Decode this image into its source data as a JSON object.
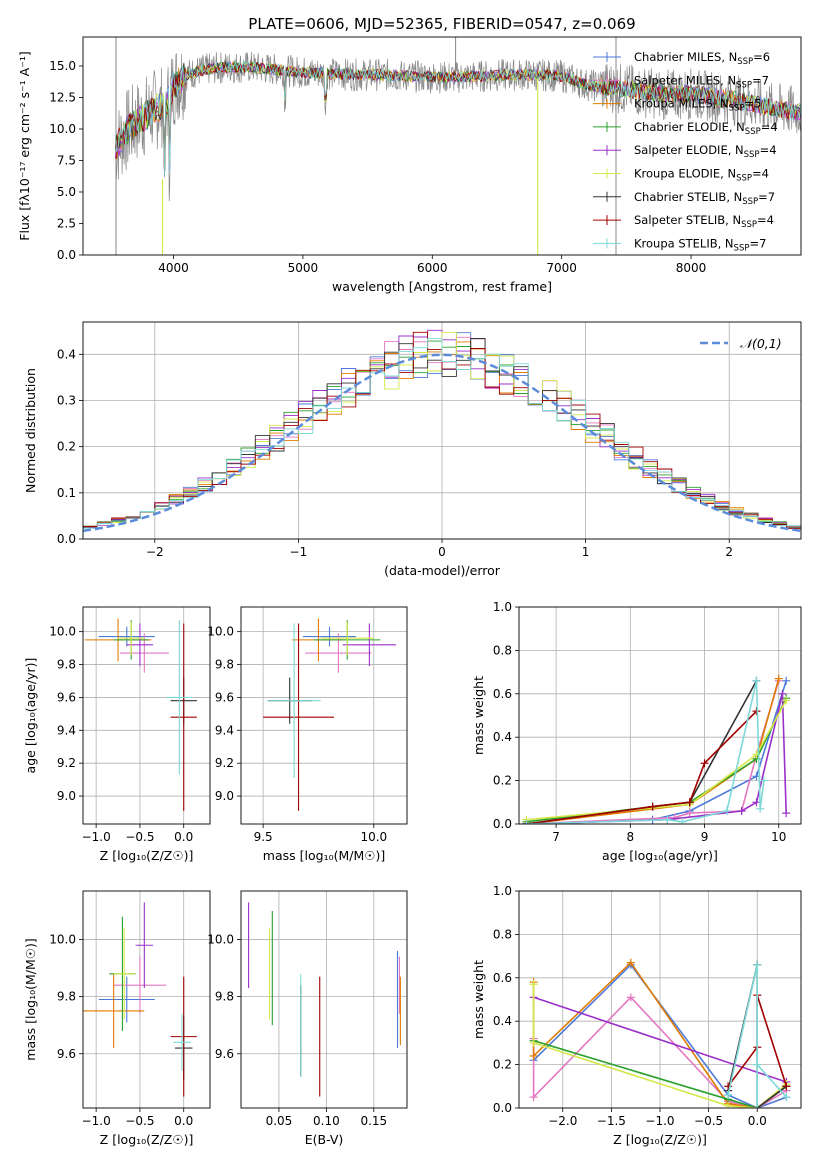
{
  "figure": {
    "title": "PLATE=0606, MJD=52365, FIBERID=0547, z=0.069"
  },
  "styles": {
    "colors": [
      "#4e79d9",
      "#e377c2",
      "#e07b00",
      "#2ca02c",
      "#9b30c8",
      "#d4e84a",
      "#333333",
      "#a00000",
      "#7fd8d8"
    ],
    "grid_color": "#b0b0b0",
    "gauss_color": "#5b8bd9"
  },
  "chart_data": [
    {
      "id": "spectrum",
      "type": "line",
      "title": "PLATE=0606, MJD=52365, FIBERID=0547, z=0.069",
      "xlabel": "wavelength [Angstrom, rest frame]",
      "ylabel": "Flux [fλ10⁻¹⁷ erg cm⁻² s⁻¹ A⁻¹]",
      "xlim": [
        3300,
        8850
      ],
      "ylim": [
        0,
        17.3
      ],
      "xticks": [
        4000,
        5000,
        6000,
        7000,
        8000
      ],
      "yticks": [
        0.0,
        2.5,
        5.0,
        7.5,
        10.0,
        12.5,
        15.0
      ],
      "legend_position": "upper-right",
      "continuum": {
        "x": [
          3550,
          3650,
          3750,
          3850,
          3950,
          4000,
          4100,
          4200,
          4300,
          4400,
          4600,
          4800,
          5000,
          5200,
          5400,
          5600,
          5800,
          6000,
          6200,
          6400,
          6600,
          6800,
          7000,
          7200,
          7400,
          7600,
          7800,
          8000,
          8200,
          8400,
          8600,
          8800
        ],
        "y": [
          8.5,
          10.0,
          10.8,
          11.5,
          12.0,
          13.5,
          14.3,
          14.6,
          14.8,
          14.9,
          14.9,
          14.7,
          14.5,
          14.4,
          14.3,
          14.3,
          14.2,
          14.1,
          14.1,
          14.2,
          14.3,
          14.3,
          14.2,
          13.5,
          13.3,
          13.0,
          12.7,
          12.8,
          12.5,
          12.2,
          11.7,
          11.4
        ]
      },
      "legend": [
        "Chabrier MILES, N_SSP=6",
        "Salpeter MILES, N_SSP=7",
        "Kroupa MILES, N_SSP=5",
        "Chabrier ELODIE, N_SSP=4",
        "Salpeter ELODIE, N_SSP=4",
        "Kroupa ELODIE, N_SSP=4",
        "Chabrier STELIB, N_SSP=7",
        "Salpeter STELIB, N_SSP=4",
        "Kroupa STELIB, N_SSP=7"
      ]
    },
    {
      "id": "residuals",
      "type": "area",
      "xlabel": "(data-model)/error",
      "ylabel": "Normed distribution",
      "xlim": [
        -2.5,
        2.5
      ],
      "ylim": [
        0,
        0.47
      ],
      "xticks": [
        -2,
        -1,
        0,
        1,
        2
      ],
      "yticks": [
        0.0,
        0.1,
        0.2,
        0.3,
        0.4
      ],
      "gauss_label": "𝒩(0,1)",
      "legend_position": "upper-right"
    },
    {
      "id": "age_vs_Z",
      "type": "scatter",
      "xlabel": "Z [log₁₀(Z/Z☉)]",
      "ylabel": "age  [log₁₀(age/yr)]",
      "xlim": [
        -1.15,
        0.3
      ],
      "ylim": [
        8.83,
        10.15
      ],
      "xticks": [
        -1.0,
        -0.5,
        0.0
      ],
      "yticks": [
        9.0,
        9.2,
        9.4,
        9.6,
        9.8,
        10.0
      ],
      "points": [
        {
          "x": -0.65,
          "y": 9.97,
          "xerr": 0.32,
          "yerr": 0.06
        },
        {
          "x": -0.45,
          "y": 9.87,
          "xerr": 0.28,
          "yerr": 0.12
        },
        {
          "x": -0.75,
          "y": 9.95,
          "xerr": 0.38,
          "yerr": 0.13
        },
        {
          "x": -0.6,
          "y": 9.95,
          "xerr": 0.2,
          "yerr": 0.12
        },
        {
          "x": -0.5,
          "y": 9.92,
          "xerr": 0.15,
          "yerr": 0.13
        },
        {
          "x": -0.6,
          "y": 9.96,
          "xerr": 0.15,
          "yerr": 0.1
        },
        {
          "x": 0.0,
          "y": 9.58,
          "xerr": 0.15,
          "yerr": 0.14
        },
        {
          "x": 0.0,
          "y": 9.48,
          "xerr": 0.15,
          "yerr": 0.57
        },
        {
          "x": -0.05,
          "y": 9.6,
          "xerr": 0.15,
          "yerr": 0.47
        }
      ]
    },
    {
      "id": "age_vs_mass",
      "type": "scatter",
      "xlabel": "mass [log₁₀(M/M☉)]",
      "ylabel": "",
      "xlim": [
        9.4,
        10.15
      ],
      "ylim": [
        8.83,
        10.15
      ],
      "xticks": [
        9.5,
        10.0
      ],
      "yticks": [
        9.0,
        9.2,
        9.4,
        9.6,
        9.8,
        10.0
      ],
      "points": [
        {
          "x": 9.8,
          "y": 9.97,
          "xerr": 0.12,
          "yerr": 0.06
        },
        {
          "x": 9.84,
          "y": 9.87,
          "xerr": 0.15,
          "yerr": 0.12
        },
        {
          "x": 9.75,
          "y": 9.95,
          "xerr": 0.12,
          "yerr": 0.13
        },
        {
          "x": 9.88,
          "y": 9.95,
          "xerr": 0.15,
          "yerr": 0.12
        },
        {
          "x": 9.98,
          "y": 9.92,
          "xerr": 0.12,
          "yerr": 0.13
        },
        {
          "x": 9.88,
          "y": 9.96,
          "xerr": 0.12,
          "yerr": 0.1
        },
        {
          "x": 9.62,
          "y": 9.58,
          "xerr": 0.1,
          "yerr": 0.14
        },
        {
          "x": 9.66,
          "y": 9.48,
          "xerr": 0.16,
          "yerr": 0.57
        },
        {
          "x": 9.64,
          "y": 9.58,
          "xerr": 0.12,
          "yerr": 0.47
        }
      ]
    },
    {
      "id": "weight_vs_age",
      "type": "line",
      "xlabel": "age  [log₁₀(age/yr)]",
      "ylabel": "mass weight",
      "xlim": [
        6.5,
        10.3
      ],
      "ylim": [
        0,
        1.0
      ],
      "xticks": [
        7,
        8,
        9,
        10
      ],
      "yticks": [
        0.0,
        0.2,
        0.4,
        0.6,
        0.8,
        1.0
      ],
      "series": [
        {
          "x": [
            6.6,
            8.3,
            8.8,
            9.7,
            10.1
          ],
          "y": [
            0.0,
            0.02,
            0.06,
            0.22,
            0.66
          ]
        },
        {
          "x": [
            6.6,
            8.6,
            8.8,
            9.5,
            9.7,
            10.0
          ],
          "y": [
            0.0,
            0.03,
            0.05,
            0.06,
            0.32,
            0.66
          ]
        },
        {
          "x": [
            6.6,
            8.8,
            9.7,
            10.0
          ],
          "y": [
            0.0,
            0.09,
            0.3,
            0.67
          ]
        },
        {
          "x": [
            6.6,
            8.8,
            9.7,
            10.1
          ],
          "y": [
            0.01,
            0.1,
            0.3,
            0.58
          ]
        },
        {
          "x": [
            6.6,
            8.5,
            9.5,
            9.7,
            10.05,
            10.1
          ],
          "y": [
            0.0,
            0.02,
            0.06,
            0.1,
            0.6,
            0.05
          ]
        },
        {
          "x": [
            6.6,
            8.8,
            9.7,
            10.1
          ],
          "y": [
            0.02,
            0.09,
            0.32,
            0.57
          ]
        },
        {
          "x": [
            6.6,
            8.3,
            8.8,
            9.7
          ],
          "y": [
            0.0,
            0.08,
            0.1,
            0.66
          ]
        },
        {
          "x": [
            6.6,
            8.3,
            8.8,
            9.0,
            9.7
          ],
          "y": [
            0.0,
            0.08,
            0.1,
            0.28,
            0.52
          ]
        },
        {
          "x": [
            6.6,
            8.5,
            8.7,
            9.3,
            9.7,
            9.75,
            9.8
          ],
          "y": [
            0.0,
            0.02,
            0.01,
            0.06,
            0.66,
            0.07,
            0.2
          ]
        }
      ]
    },
    {
      "id": "mass_vs_Z",
      "type": "scatter",
      "xlabel": "Z [log₁₀(Z/Z☉)]",
      "ylabel": "mass [log₁₀(M/M☉)]",
      "xlim": [
        -1.15,
        0.3
      ],
      "ylim": [
        9.41,
        10.17
      ],
      "xticks": [
        -1.0,
        -0.5,
        0.0
      ],
      "yticks": [
        9.6,
        9.8,
        10.0
      ],
      "points": [
        {
          "x": -0.65,
          "y": 9.79,
          "xerr": 0.32,
          "yerr": 0.08
        },
        {
          "x": -0.5,
          "y": 9.84,
          "xerr": 0.3,
          "yerr": 0.1
        },
        {
          "x": -0.8,
          "y": 9.75,
          "xerr": 0.35,
          "yerr": 0.13
        },
        {
          "x": -0.7,
          "y": 9.88,
          "xerr": 0.15,
          "yerr": 0.2
        },
        {
          "x": -0.45,
          "y": 9.98,
          "xerr": 0.1,
          "yerr": 0.15
        },
        {
          "x": -0.68,
          "y": 9.88,
          "xerr": 0.12,
          "yerr": 0.16
        },
        {
          "x": 0.0,
          "y": 9.62,
          "xerr": 0.1,
          "yerr": 0.11
        },
        {
          "x": 0.0,
          "y": 9.66,
          "xerr": 0.15,
          "yerr": 0.21
        },
        {
          "x": -0.02,
          "y": 9.64,
          "xerr": 0.1,
          "yerr": 0.1
        }
      ]
    },
    {
      "id": "mass_vs_ebv",
      "type": "scatter",
      "xlabel": "E(B-V)",
      "ylabel": "",
      "xlim": [
        0.01,
        0.185
      ],
      "ylim": [
        9.41,
        10.17
      ],
      "xticks": [
        0.05,
        0.1,
        0.15
      ],
      "yticks": [
        9.6,
        9.8,
        10.0
      ],
      "points": [
        {
          "x": 0.175,
          "y": 9.79,
          "xerr": 0.0,
          "yerr": 0.17
        },
        {
          "x": 0.177,
          "y": 9.84,
          "xerr": 0.0,
          "yerr": 0.1
        },
        {
          "x": 0.178,
          "y": 9.75,
          "xerr": 0.0,
          "yerr": 0.12
        },
        {
          "x": 0.043,
          "y": 9.9,
          "xerr": 0.0,
          "yerr": 0.2
        },
        {
          "x": 0.018,
          "y": 9.98,
          "xerr": 0.0,
          "yerr": 0.15
        },
        {
          "x": 0.04,
          "y": 9.88,
          "xerr": 0.0,
          "yerr": 0.16
        },
        {
          "x": 0.073,
          "y": 9.68,
          "xerr": 0.0,
          "yerr": 0.16
        },
        {
          "x": 0.093,
          "y": 9.66,
          "xerr": 0.0,
          "yerr": 0.21
        },
        {
          "x": 0.073,
          "y": 9.7,
          "xerr": 0.0,
          "yerr": 0.18
        }
      ]
    },
    {
      "id": "weight_vs_Z",
      "type": "line",
      "xlabel": "Z [log₁₀(Z/Z☉)]",
      "ylabel": "mass weight",
      "xlim": [
        -2.45,
        0.45
      ],
      "ylim": [
        0,
        1.0
      ],
      "xticks": [
        -2.0,
        -1.5,
        -1.0,
        -0.5,
        0.0
      ],
      "yticks": [
        0.0,
        0.2,
        0.4,
        0.6,
        0.8,
        1.0
      ],
      "series": [
        {
          "x": [
            -2.3,
            -1.3,
            -0.3,
            0.0,
            0.3
          ],
          "y": [
            0.22,
            0.66,
            0.06,
            0.0,
            0.05
          ]
        },
        {
          "x": [
            -2.3,
            -2.3,
            -1.3,
            -0.3,
            0.0,
            0.3
          ],
          "y": [
            0.32,
            0.05,
            0.51,
            0.03,
            0.0,
            0.08
          ]
        },
        {
          "x": [
            -2.3,
            -2.3,
            -1.3,
            -0.3,
            0.0,
            0.3
          ],
          "y": [
            0.58,
            0.24,
            0.67,
            0.02,
            0.0,
            0.1
          ]
        },
        {
          "x": [
            -2.3,
            -0.3,
            0.0,
            0.3
          ],
          "y": [
            0.31,
            0.04,
            0.0,
            0.1
          ]
        },
        {
          "x": [
            -2.3,
            0.3
          ],
          "y": [
            0.51,
            0.12
          ]
        },
        {
          "x": [
            -2.3,
            -2.3,
            -0.3,
            0.0,
            0.3
          ],
          "y": [
            0.57,
            0.3,
            0.01,
            0.0,
            0.11
          ]
        },
        {
          "x": [
            -0.3,
            0.0,
            0.0,
            0.3
          ],
          "y": [
            0.08,
            0.66,
            0.0,
            0.1
          ]
        },
        {
          "x": [
            -0.3,
            0.0,
            0.0,
            0.3
          ],
          "y": [
            0.1,
            0.28,
            0.52,
            0.1
          ]
        },
        {
          "x": [
            -0.3,
            0.0,
            0.0,
            0.0,
            0.3
          ],
          "y": [
            0.06,
            0.66,
            0.0,
            0.2,
            0.05
          ]
        }
      ]
    }
  ]
}
